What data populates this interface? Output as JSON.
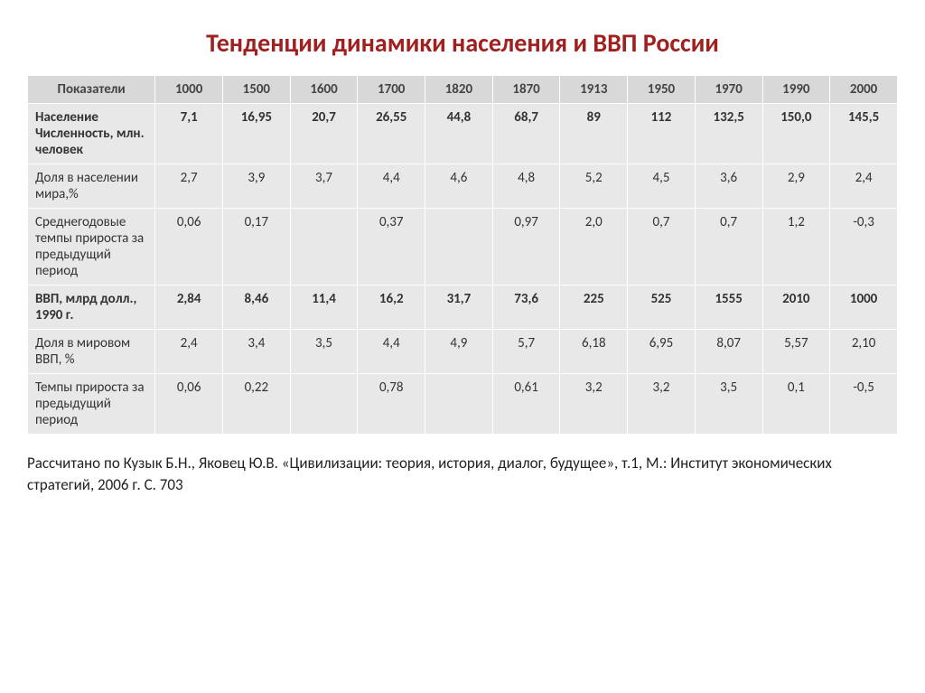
{
  "title": "Тенденции динамики населения и ВВП России",
  "table": {
    "header_label": "Показатели",
    "years": [
      "1000",
      "1500",
      "1600",
      "1700",
      "1820",
      "1870",
      "1913",
      "1950",
      "1970",
      "1990",
      "2000"
    ],
    "rows": [
      {
        "label": "Население Численность, млн. человек",
        "bold": true,
        "cells": [
          "7,1",
          "16,95",
          "20,7",
          "26,55",
          "44,8",
          "68,7",
          "89",
          "112",
          "132,5",
          "150,0",
          "145,5"
        ]
      },
      {
        "label": "Доля в населении мира,%",
        "bold": false,
        "cells": [
          "2,7",
          "3,9",
          "3,7",
          "4,4",
          "4,6",
          "4,8",
          "5,2",
          "4,5",
          "3,6",
          "2,9",
          "2,4"
        ]
      },
      {
        "label": "Среднегодовые темпы прироста за предыдущий период",
        "bold": false,
        "cells": [
          "0,06",
          "0,17",
          "",
          "0,37",
          "",
          "0,97",
          "2,0",
          "0,7",
          "0,7",
          "1,2",
          "-0,3"
        ]
      },
      {
        "label": "ВВП, млрд долл., 1990 г.",
        "bold": true,
        "cells": [
          "2,84",
          "8,46",
          "11,4",
          "16,2",
          "31,7",
          "73,6",
          "225",
          "525",
          "1555",
          "2010",
          "1000"
        ]
      },
      {
        "label": "Доля в мировом ВВП, %",
        "bold": false,
        "cells": [
          "2,4",
          "3,4",
          "3,5",
          "4,4",
          "4,9",
          "5,7",
          "6,18",
          "6,95",
          "8,07",
          "5,57",
          "2,10"
        ]
      },
      {
        "label": "Темпы прироста за предыдущий период",
        "bold": false,
        "cells": [
          "0,06",
          "0,22",
          "",
          "0,78",
          "",
          "0,61",
          "3,2",
          "3,2",
          "3,5",
          "0,1",
          "-0,5"
        ]
      }
    ]
  },
  "source": "Рассчитано по Кузык Б.Н., Яковец Ю.В. «Цивилизации: теория, история, диалог, будущее», т.1, М.: Институт экономических стратегий, 2006 г. С. 703",
  "colors": {
    "title": "#a02020",
    "header_bg": "#d8d8d8",
    "cell_bg": "#e8e8e8",
    "border": "#ffffff",
    "text": "#333333"
  }
}
